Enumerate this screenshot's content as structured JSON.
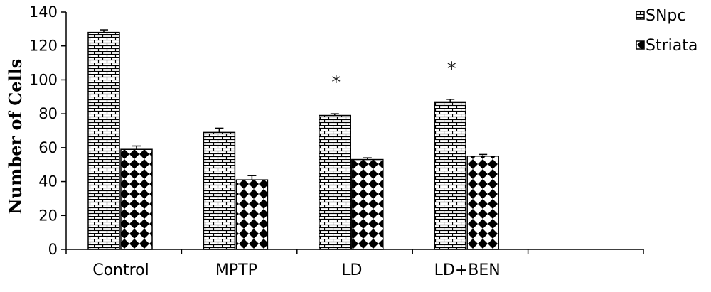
{
  "chart_data": {
    "type": "bar",
    "title": "",
    "xlabel": "",
    "ylabel": "Number of Cells",
    "ylim": [
      0,
      140
    ],
    "yticks": [
      0,
      20,
      40,
      60,
      80,
      100,
      120,
      140
    ],
    "categories": [
      "Control",
      "MPTP",
      "LD",
      "LD+BEN",
      ""
    ],
    "series": [
      {
        "name": "SNpc",
        "pattern": "brick",
        "values": [
          128,
          69,
          79,
          87,
          null
        ],
        "errors": [
          1.5,
          2.5,
          1,
          1.5,
          null
        ]
      },
      {
        "name": "Striata",
        "pattern": "checker",
        "values": [
          59,
          41,
          53,
          55,
          null
        ],
        "errors": [
          2,
          2.5,
          1,
          1,
          null
        ]
      }
    ],
    "annotations": [
      {
        "text": "*",
        "category": "LD"
      },
      {
        "text": "*",
        "category": "LD+BEN"
      }
    ],
    "legend_position": "top-right",
    "grid": false,
    "colors": {
      "bar_fill": "#ffffff",
      "pattern": "#000000",
      "axis": "#000000"
    }
  }
}
